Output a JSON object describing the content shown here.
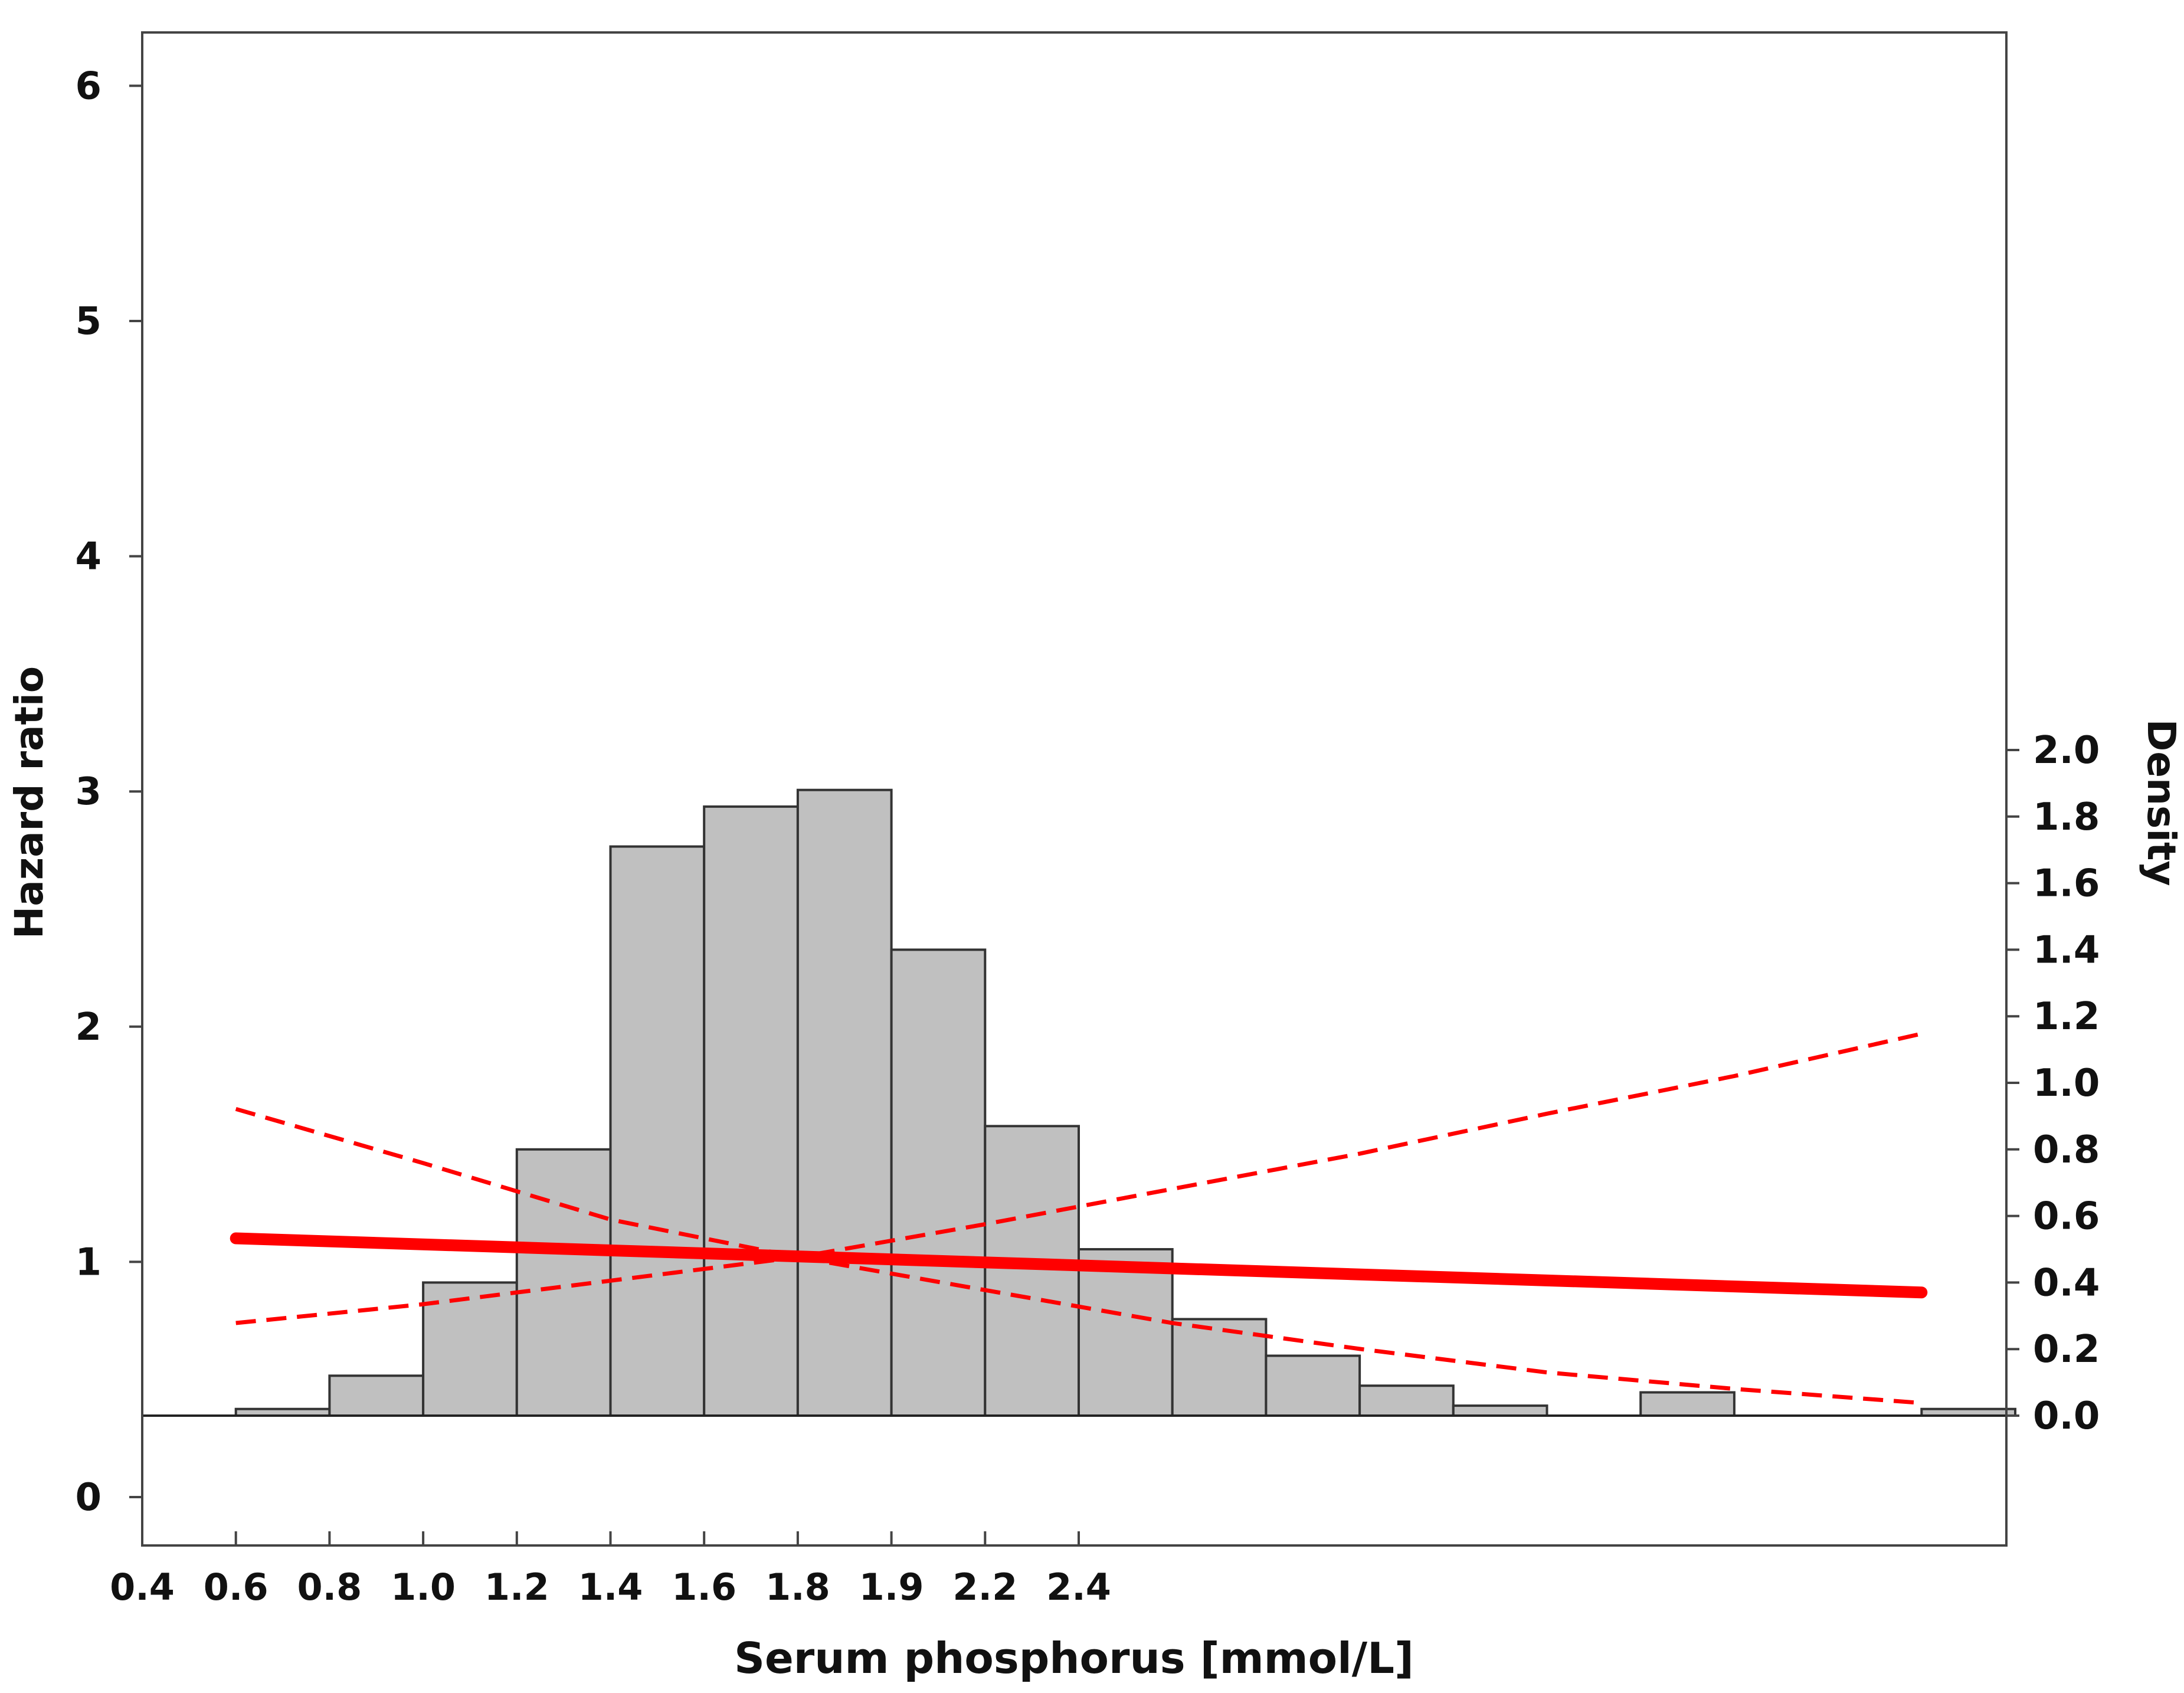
{
  "chart_data": {
    "type": "bar",
    "xlabel": "Serum phosphorus [mmol/L]",
    "ylabel_left": "Hazard ratio",
    "ylabel_right": "Density",
    "x_ticks": [
      "0.4",
      "0.6",
      "0.8",
      "1.0",
      "1.2",
      "1.4",
      "1.6",
      "1.8",
      "1.9",
      "2.2",
      "2.4"
    ],
    "left_ticks": [
      0,
      1,
      2,
      3,
      4,
      5,
      6
    ],
    "right_ticks": [
      "0.0",
      "0.2",
      "0.4",
      "0.6",
      "0.8",
      "1.0",
      "1.2",
      "1.4",
      "1.6",
      "1.8",
      "2.0"
    ],
    "left_ylim": [
      -0.2,
      6.2
    ],
    "histogram": {
      "axis": "right",
      "color": "#c0c0c0",
      "bins": [
        {
          "x0": 0.5,
          "x1": 0.6,
          "density": 0.02
        },
        {
          "x0": 0.6,
          "x1": 0.7,
          "density": 0.12
        },
        {
          "x0": 0.7,
          "x1": 0.8,
          "density": 0.4
        },
        {
          "x0": 0.8,
          "x1": 0.9,
          "density": 0.8
        },
        {
          "x0": 0.9,
          "x1": 1.0,
          "density": 1.71
        },
        {
          "x0": 1.0,
          "x1": 1.1,
          "density": 1.83
        },
        {
          "x0": 1.1,
          "x1": 1.2,
          "density": 1.88
        },
        {
          "x0": 1.2,
          "x1": 1.3,
          "density": 1.4
        },
        {
          "x0": 1.3,
          "x1": 1.4,
          "density": 0.87
        },
        {
          "x0": 1.4,
          "x1": 1.5,
          "density": 0.5
        },
        {
          "x0": 1.5,
          "x1": 1.6,
          "density": 0.29
        },
        {
          "x0": 1.6,
          "x1": 1.7,
          "density": 0.18
        },
        {
          "x0": 1.7,
          "x1": 1.8,
          "density": 0.09
        },
        {
          "x0": 1.8,
          "x1": 1.9,
          "density": 0.03
        },
        {
          "x0": 2.0,
          "x1": 2.1,
          "density": 0.07
        },
        {
          "x0": 2.3,
          "x1": 2.4,
          "density": 0.02
        }
      ]
    },
    "series": [
      {
        "style": "solid",
        "color": "#ff0000",
        "axis": "left",
        "x": [
          0.5,
          2.3
        ],
        "y": [
          1.1,
          0.87
        ]
      },
      {
        "style": "dashed",
        "color": "#ff0000",
        "axis": "left",
        "x": [
          0.5,
          0.7,
          0.9,
          1.1,
          1.3,
          1.5,
          1.7,
          1.9,
          2.1,
          2.3
        ],
        "y": [
          0.74,
          0.82,
          0.92,
          1.02,
          1.16,
          1.31,
          1.46,
          1.63,
          1.79,
          1.97
        ]
      },
      {
        "style": "dashed",
        "color": "#ff0000",
        "axis": "left",
        "x": [
          0.5,
          0.7,
          0.9,
          1.1,
          1.3,
          1.5,
          1.7,
          1.9,
          2.1,
          2.3
        ],
        "y": [
          1.65,
          1.42,
          1.18,
          1.02,
          0.88,
          0.74,
          0.63,
          0.53,
          0.46,
          0.4
        ]
      }
    ]
  }
}
